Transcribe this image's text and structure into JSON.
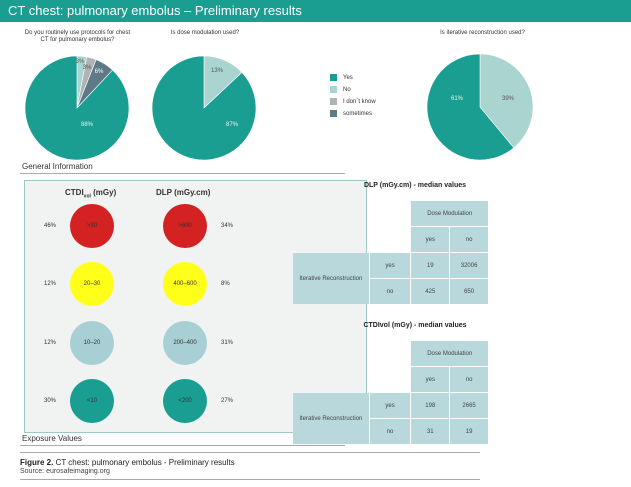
{
  "header": {
    "title": "CT chest: pulmonary embolus – Preliminary results"
  },
  "colors": {
    "header": "#1a9e91",
    "yes": "#1a9e91",
    "no": "#a9d4cf",
    "dont_know": "#b0b3b3",
    "sometimes": "#5f7a86",
    "red": "#d42121",
    "yellow": "#ffff1a",
    "lightgrey": "#a8cfd3",
    "teal": "#1a9e91"
  },
  "chart_data": [
    {
      "type": "pie",
      "title": "Do you routinely use protocols for chest CT for pulmonary embolus?",
      "labels": [
        "Yes",
        "No",
        "I don´t know",
        "sometimes"
      ],
      "values": [
        88,
        3,
        3,
        6
      ],
      "data_labels": [
        "88%",
        "3%",
        "3%",
        "6%"
      ]
    },
    {
      "type": "pie",
      "title": "Is dose modulation used?",
      "labels": [
        "Yes",
        "No"
      ],
      "values": [
        87,
        13
      ],
      "data_labels": [
        "87%",
        "13%"
      ]
    },
    {
      "type": "pie",
      "title": "Is iterative reconstruction used?",
      "labels": [
        "Yes",
        "No"
      ],
      "values": [
        61,
        39
      ],
      "data_labels": [
        "61%",
        "39%"
      ]
    },
    {
      "type": "table",
      "title": "DLP (mGy.cm) - median values",
      "header": "Dose Modulation",
      "columns": [
        "yes",
        "no"
      ],
      "row_group": "Iterative Reconstruction",
      "rows": [
        "yes",
        "no"
      ],
      "values": [
        [
          "19",
          "32006"
        ],
        [
          "425",
          "650"
        ]
      ]
    },
    {
      "type": "table",
      "title": "CTDIvol (mGy) - median values",
      "header": "Dose Modulation",
      "columns": [
        "yes",
        "no"
      ],
      "row_group": "Iterative Reconstruction",
      "rows": [
        "yes",
        "no"
      ],
      "values": [
        [
          "198",
          "2665"
        ],
        [
          "31",
          "19"
        ]
      ]
    }
  ],
  "legend": {
    "items": [
      "Yes",
      "No",
      "I don´t know",
      "sometimes"
    ]
  },
  "general_info_label": "General Information",
  "exposure": {
    "col1_title": "CTDI",
    "col1_sub": "vol",
    "col1_unit": "(mGy)",
    "col2_title": "DLP (mGy.cm)",
    "rows": [
      {
        "ctdi_pct": "46%",
        "ctdi_label": ">30",
        "dlp_label": ">600",
        "dlp_pct": "34%",
        "color": "red"
      },
      {
        "ctdi_pct": "12%",
        "ctdi_label": "20–30",
        "dlp_label": "400–600",
        "dlp_pct": "8%",
        "color": "yellow"
      },
      {
        "ctdi_pct": "12%",
        "ctdi_label": "10–20",
        "dlp_label": "200–400",
        "dlp_pct": "31%",
        "color": "lightgrey"
      },
      {
        "ctdi_pct": "30%",
        "ctdi_label": "<10",
        "dlp_label": "<200",
        "dlp_pct": "27%",
        "color": "teal"
      }
    ]
  },
  "exposure_label": "Exposure Values",
  "caption": {
    "figure": "Figure 2.",
    "text": " CT chest: pulmonary embolus - Preliminary results",
    "source": "Source: eurosafeimaging.org"
  }
}
